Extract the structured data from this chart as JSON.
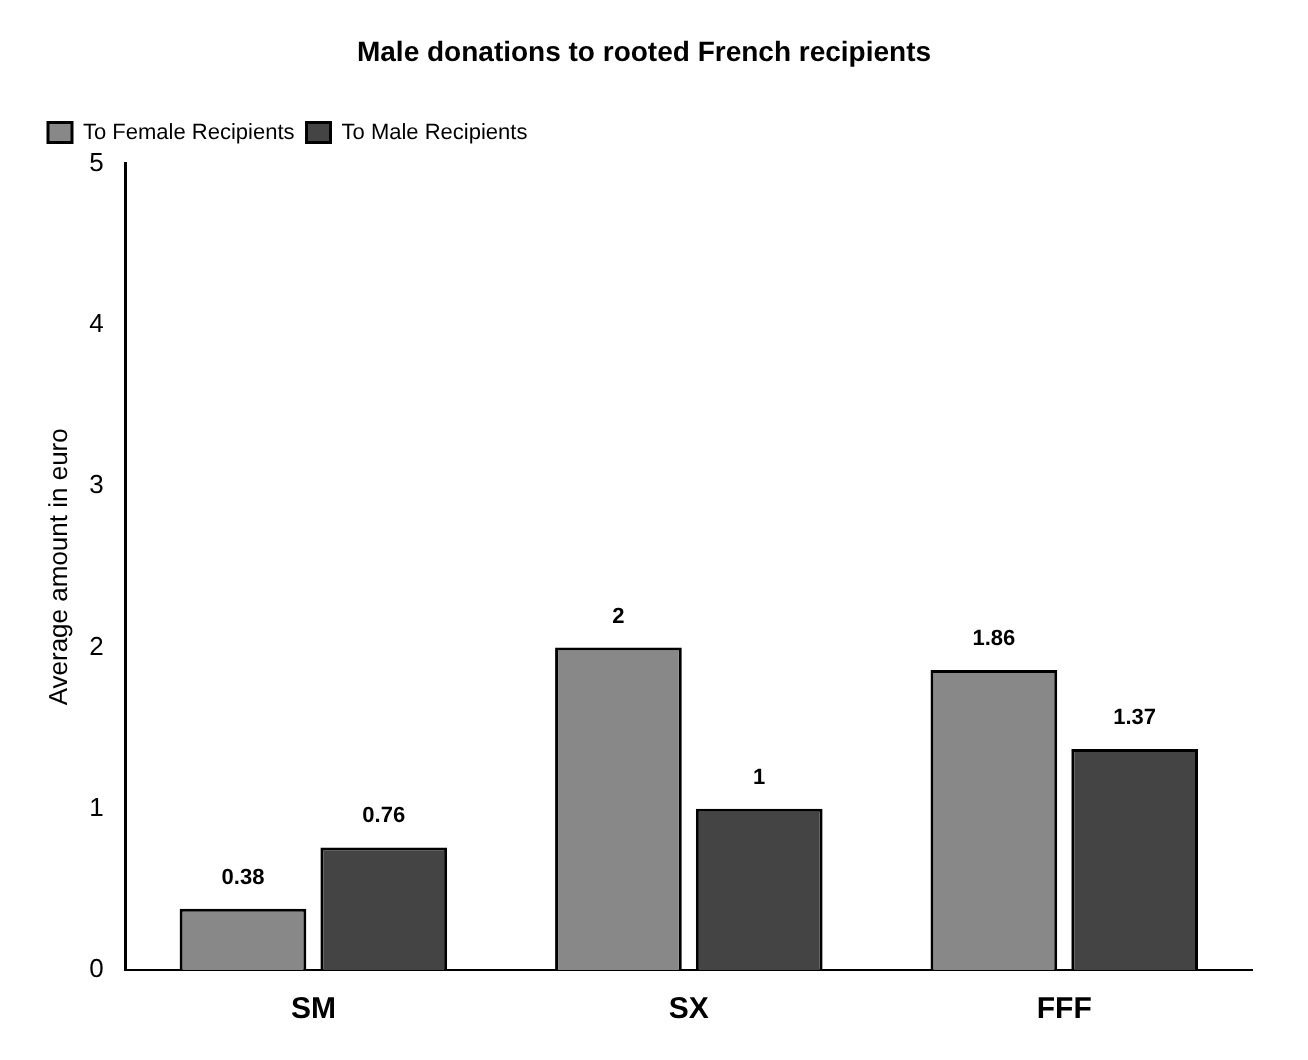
{
  "chart_data": {
    "type": "bar",
    "title": "Male donations to rooted French recipients",
    "ylabel": "Average amount in euro",
    "categories": [
      "SM",
      "SX",
      "FFF"
    ],
    "series": [
      {
        "name": "To Female Recipients",
        "color": "#888888",
        "values": [
          0.38,
          2,
          1.86
        ]
      },
      {
        "name": "To Male Recipients",
        "color": "#444444",
        "values": [
          0.76,
          1,
          1.37
        ]
      }
    ],
    "ylim": [
      0,
      5
    ],
    "yticks": [
      0,
      1,
      2,
      3,
      4,
      5
    ],
    "grid": false,
    "legend": "top left",
    "data_labels": true
  }
}
